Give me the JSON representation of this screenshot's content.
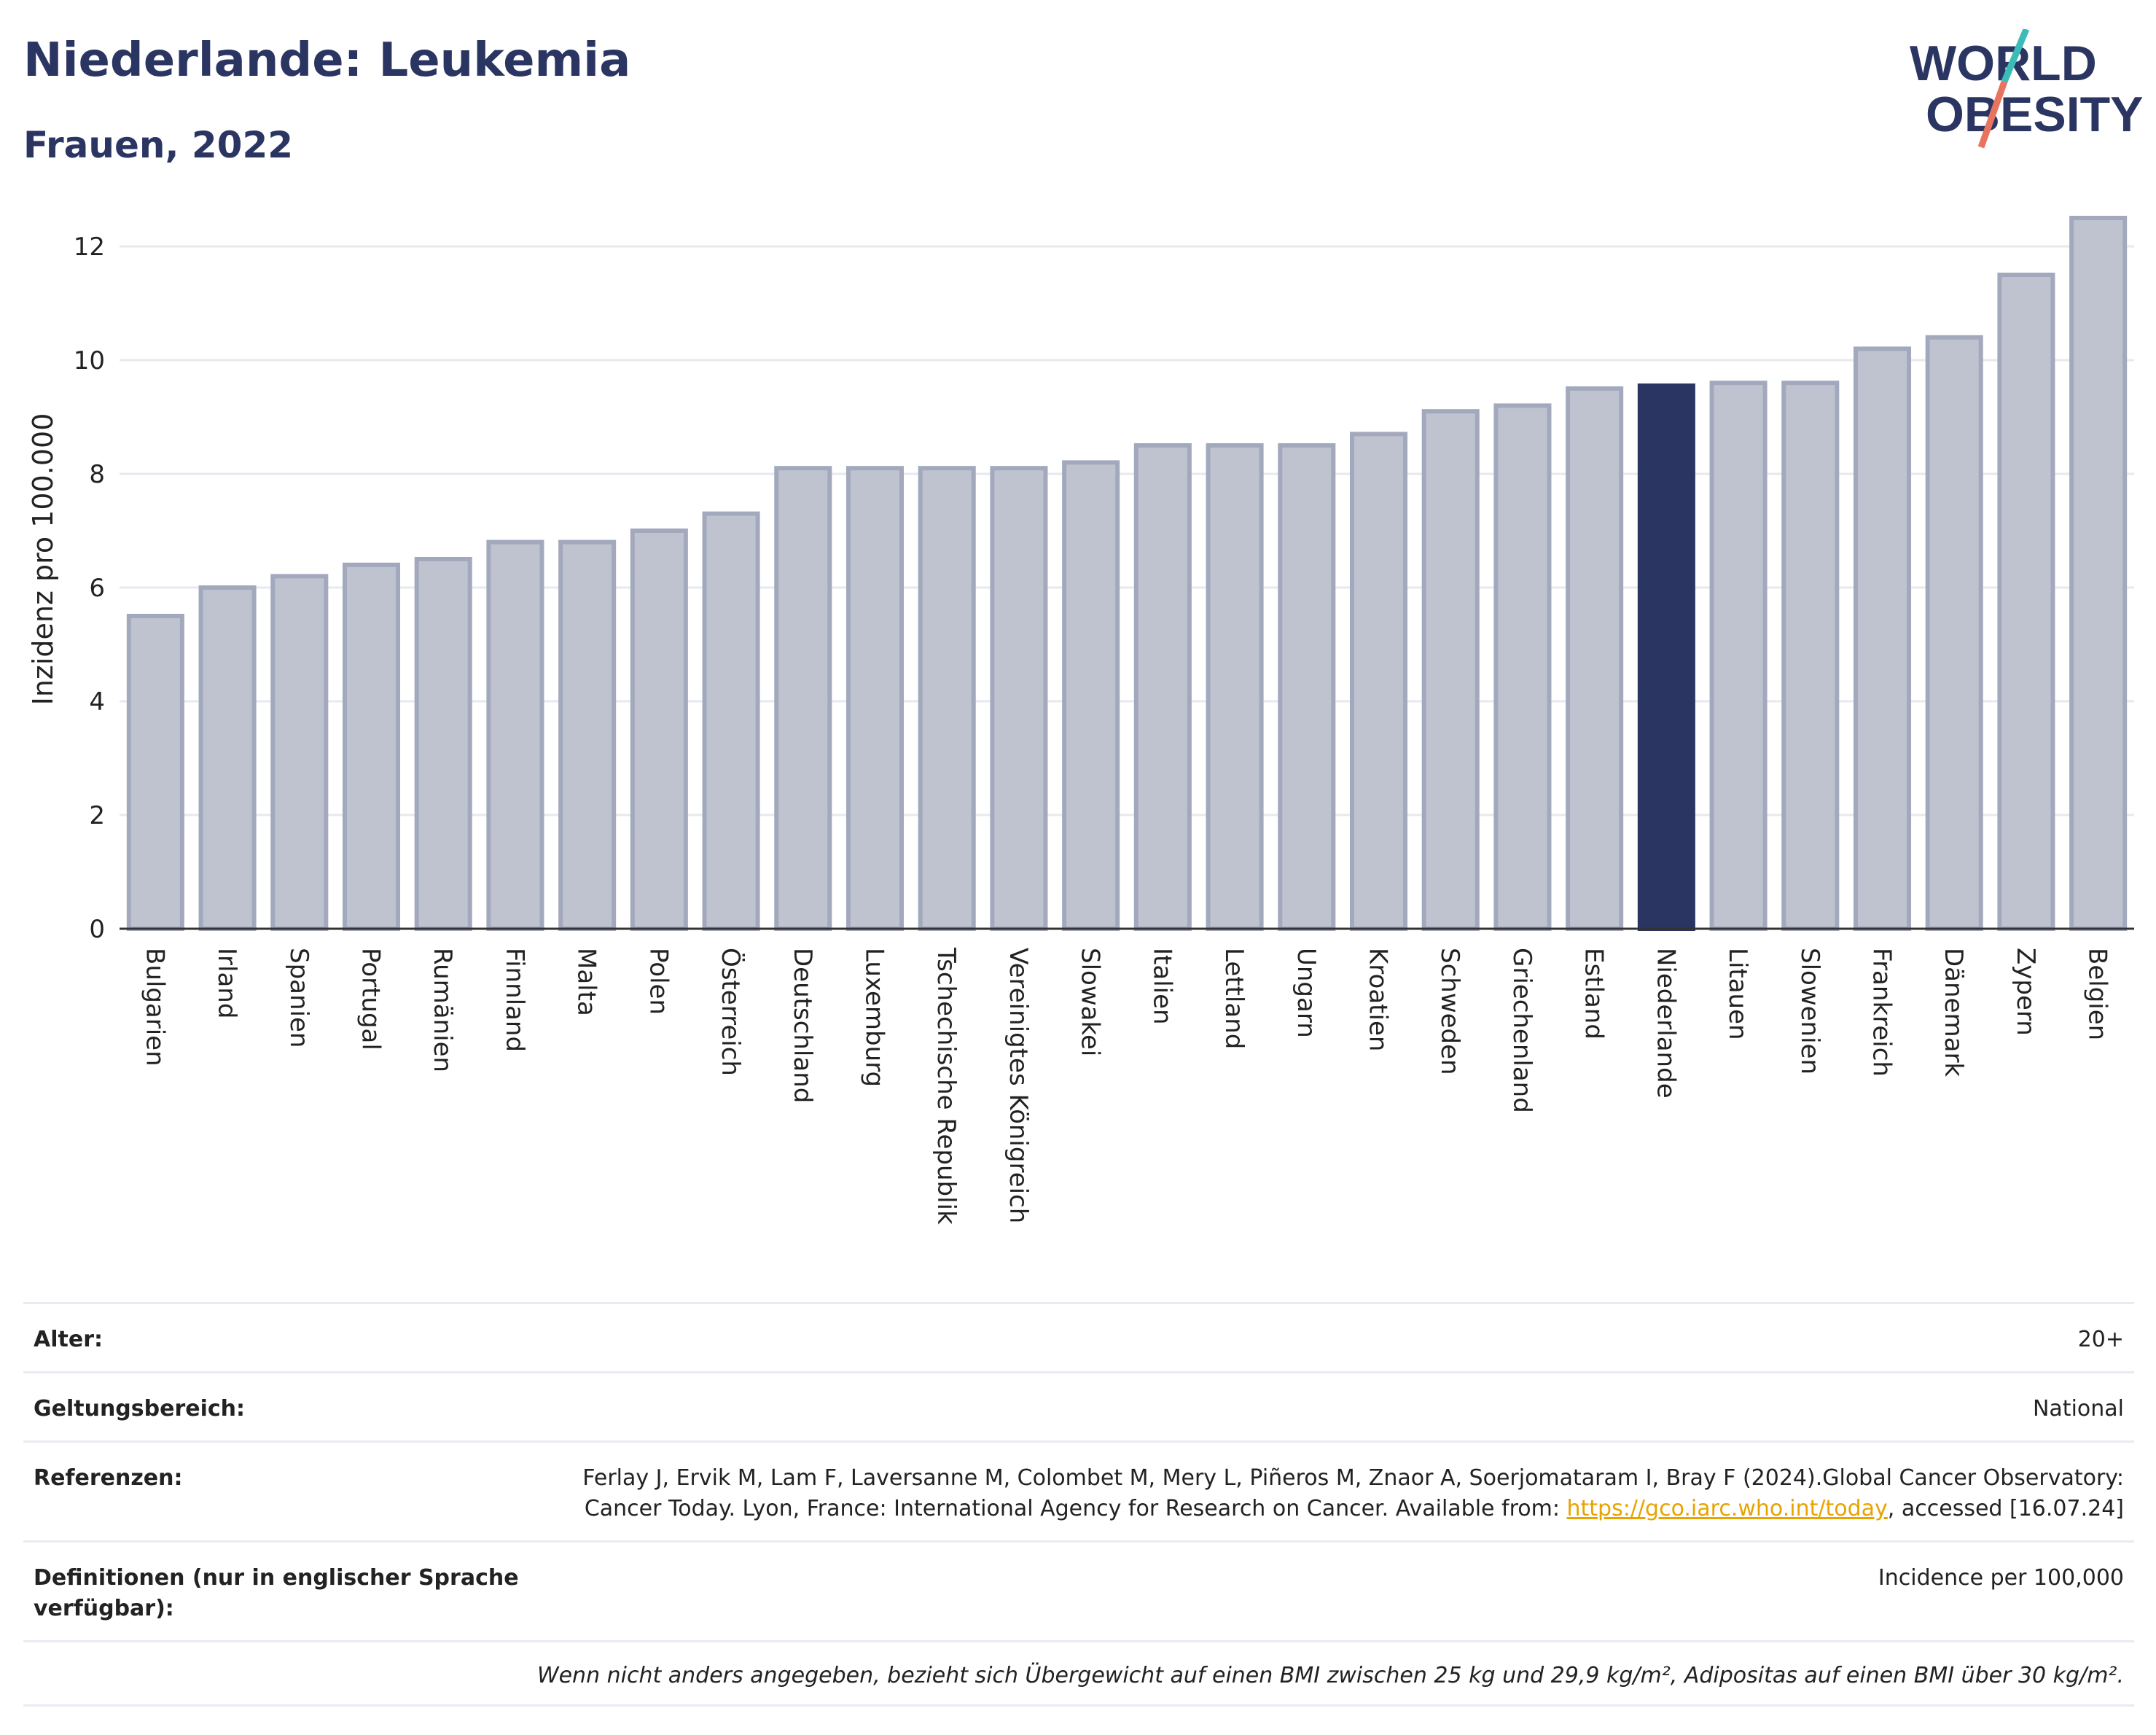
{
  "header": {
    "title": "Niederlande: Leukemia",
    "subtitle": "Frauen, 2022"
  },
  "logo": {
    "line1": "WORLD",
    "line2": "OBESITY"
  },
  "chart_data": {
    "type": "bar",
    "categories": [
      "Bulgarien",
      "Irland",
      "Spanien",
      "Portugal",
      "Rumänien",
      "Finnland",
      "Malta",
      "Polen",
      "Österreich",
      "Deutschland",
      "Luxemburg",
      "Tschechische Republik",
      "Vereinigtes Königreich",
      "Slowakei",
      "Italien",
      "Lettland",
      "Ungarn",
      "Kroatien",
      "Schweden",
      "Griechenland",
      "Estland",
      "Niederlande",
      "Litauen",
      "Slowenien",
      "Frankreich",
      "Dänemark",
      "Zypern",
      "Belgien"
    ],
    "values": [
      5.5,
      6.0,
      6.2,
      6.4,
      6.5,
      6.8,
      6.8,
      7.0,
      7.3,
      8.1,
      8.1,
      8.1,
      8.1,
      8.2,
      8.5,
      8.5,
      8.5,
      8.7,
      9.1,
      9.2,
      9.5,
      9.55,
      9.6,
      9.6,
      10.2,
      10.4,
      11.5,
      12.5
    ],
    "highlight": "Niederlande",
    "ylabel": "Inzidenz pro 100.000",
    "xlabel": "",
    "ylim": [
      0,
      13
    ],
    "yticks": [
      0,
      2,
      4,
      6,
      8,
      10,
      12
    ],
    "grid": true,
    "colors": {
      "bar": "#bfc3d0",
      "bar_edge": "#a3a9bd",
      "highlight": "#2b3562",
      "grid": "#e7e9ef"
    }
  },
  "meta": {
    "age_label": "Alter:",
    "age_value": "20+",
    "scope_label": "Geltungsbereich:",
    "scope_value": "National",
    "refs_label": "Referenzen:",
    "refs_text_1": "Ferlay J, Ervik M, Lam F, Laversanne M, Colombet M, Mery L, Piñeros M, Znaor A, Soerjomataram I, Bray F (2024).Global Cancer Observatory: Cancer Today. Lyon, France: International Agency for Research on Cancer. Available from: ",
    "refs_link": "https://gco.iarc.who.int/today",
    "refs_text_2": ", accessed [16.07.24]",
    "defs_label": "Definitionen (nur in englischer Sprache verfügbar):",
    "defs_value": "Incidence per 100,000",
    "note": "Wenn nicht anders angegeben, bezieht sich Übergewicht auf einen BMI zwischen 25 kg und 29,9 kg/m², Adipositas auf einen BMI über 30 kg/m²."
  }
}
